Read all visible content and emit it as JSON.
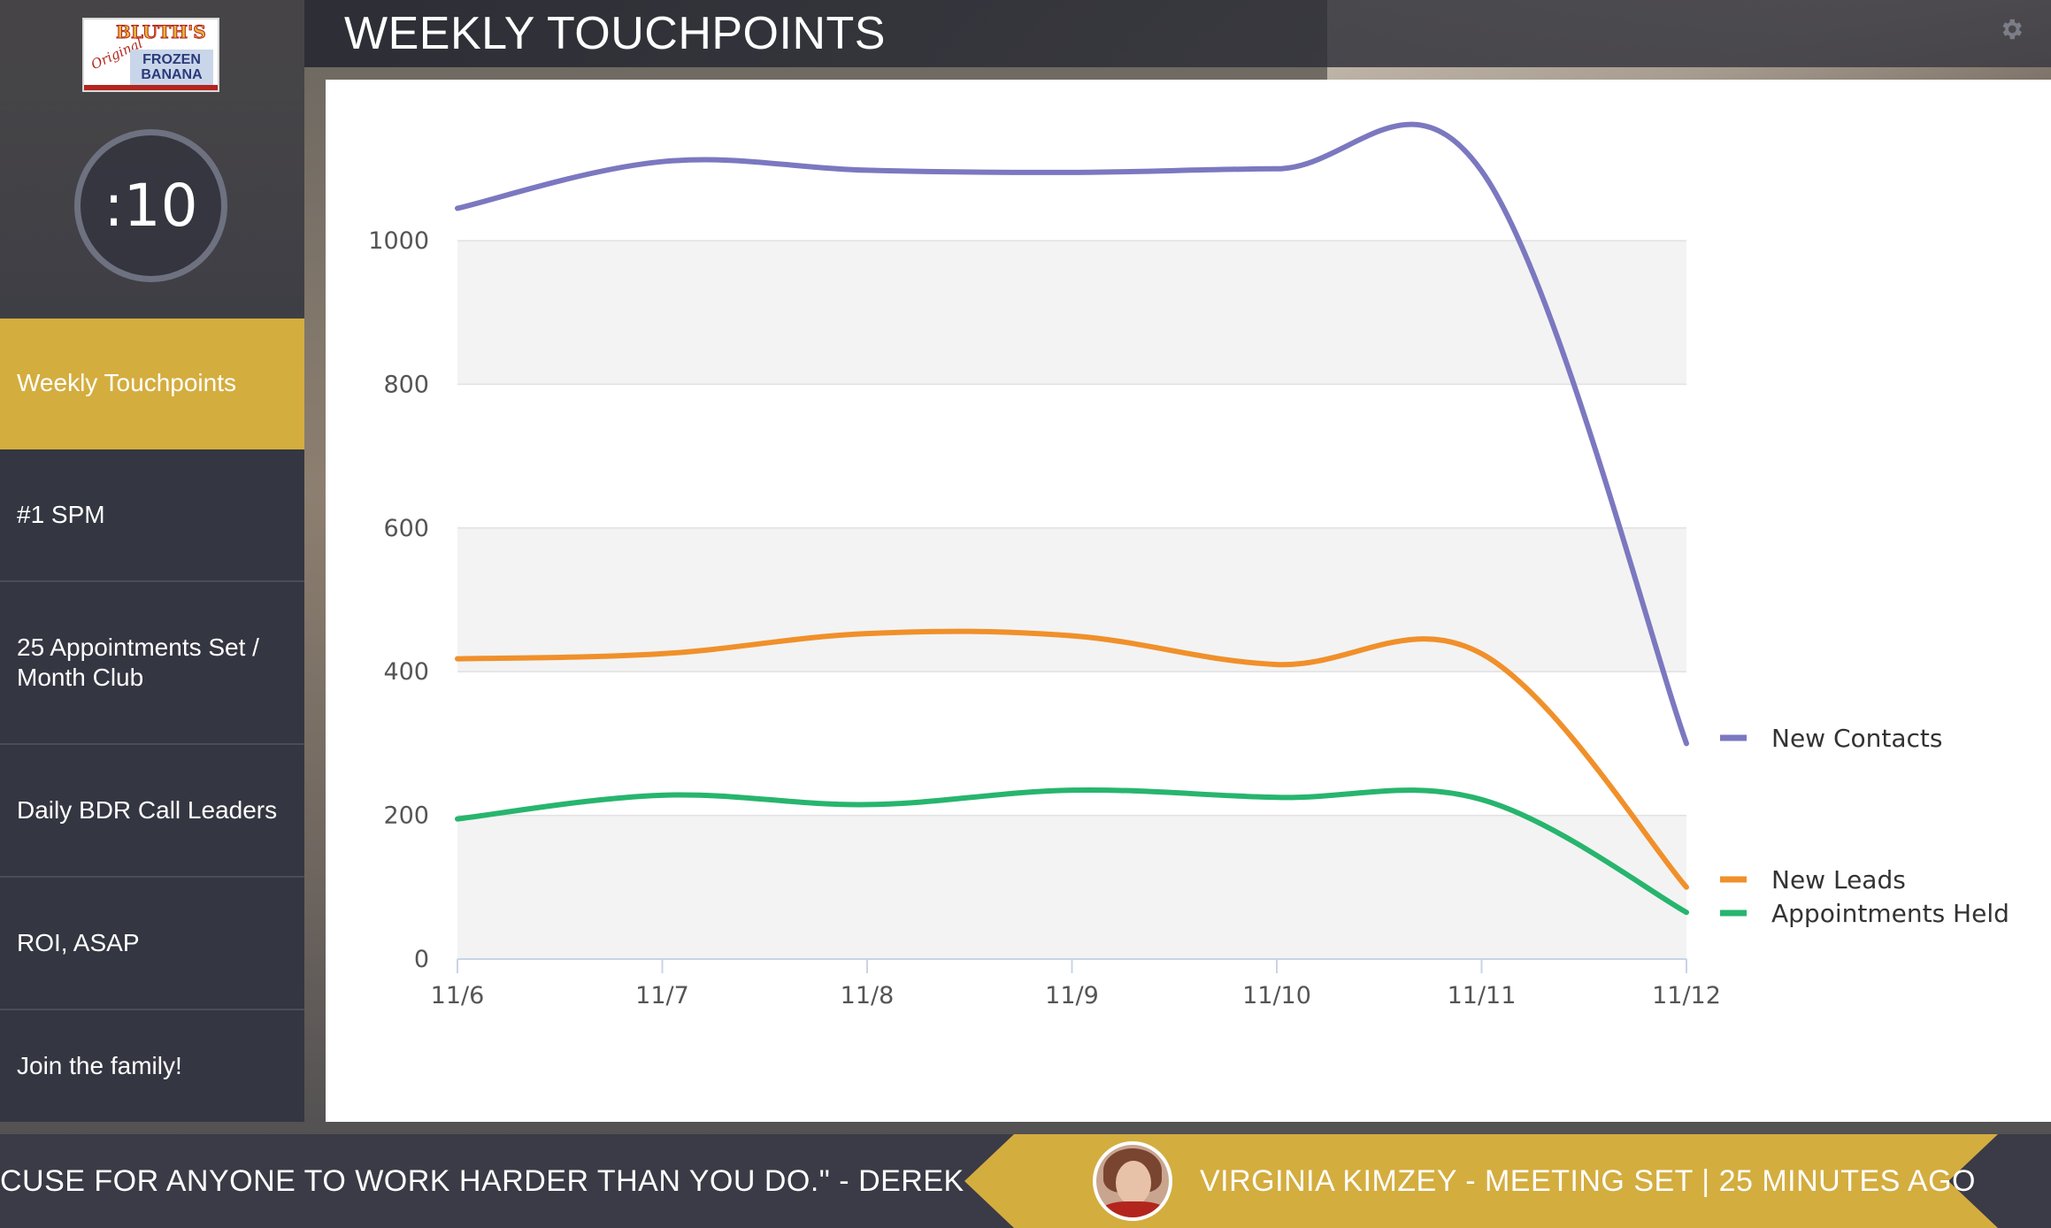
{
  "app": {
    "logo_text": {
      "line1": "BLUTH'S",
      "line2": "Original",
      "line3": "FROZEN BANANA"
    },
    "timer": ":10"
  },
  "header": {
    "title": "WEEKLY TOUCHPOINTS",
    "settings_icon": "gear-icon"
  },
  "sidebar": {
    "items": [
      {
        "label": "Weekly Touchpoints",
        "active": true
      },
      {
        "label": "#1 SPM",
        "active": false
      },
      {
        "label": "25 Appointments Set / Month Club",
        "active": false
      },
      {
        "label": "Daily BDR Call Leaders",
        "active": false
      },
      {
        "label": "ROI, ASAP",
        "active": false
      },
      {
        "label": "Join the family!",
        "active": false
      }
    ]
  },
  "chart_data": {
    "type": "line",
    "categories": [
      "11/6",
      "11/7",
      "11/8",
      "11/9",
      "11/10",
      "11/11",
      "11/12"
    ],
    "series": [
      {
        "name": "New Contacts",
        "color": "#7b78c0",
        "values": [
          1045,
          1110,
          1098,
          1095,
          1100,
          1097,
          300
        ]
      },
      {
        "name": "New Leads",
        "color": "#f0902a",
        "values": [
          418,
          425,
          453,
          450,
          410,
          425,
          100
        ]
      },
      {
        "name": "Appointments Held",
        "color": "#27b56e",
        "values": [
          195,
          228,
          215,
          235,
          225,
          222,
          65
        ]
      }
    ],
    "yticks": [
      0,
      200,
      400,
      600,
      800,
      1000
    ],
    "ylim": [
      0,
      1000
    ],
    "grid": true,
    "legend_position": "right"
  },
  "ticker": {
    "quote": "CUSE FOR ANYONE TO WORK HARDER THAN YOU DO.\" - DEREK JETER",
    "activity": "VIRGINIA KIMZEY - MEETING SET | 25 MINUTES AGO"
  },
  "colors": {
    "accent": "#d4ad3f",
    "sidebar": "#343641",
    "ticker": "#3a3b46"
  }
}
